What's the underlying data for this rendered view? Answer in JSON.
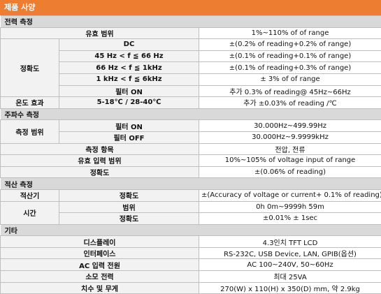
{
  "title": "제품 사양",
  "sections": {
    "power": {
      "header": "전력 측정",
      "range_label": "유효 범위",
      "range_value": "1%~110% of of range",
      "accuracy_label": "정확도",
      "dc_label": "DC",
      "dc_value": "±(0.2% of reading+0.2% of range)",
      "f45_label": "45 Hz < f ≦ 66 Hz",
      "f45_value": "±(0.1% of reading+0.1% of range)",
      "f66_label": "66 Hz < f ≦ 1kHz",
      "f66_value": "±(0.1% of reading+0.3% of range)",
      "f1k_label": "1 kHz < f ≦ 6kHz",
      "f1k_value": "± 3% of of range",
      "filter_label": "필터 ON",
      "filter_value": "추가 0.3% of reading@ 45Hz~66Hz",
      "temp_label": "온도 효과",
      "temp_range": "5-18℃ / 28-40℃",
      "temp_value": "추가 ±0.03% of reading /℃"
    },
    "frequency": {
      "header": "주파수 측정",
      "range_label": "측정 범위",
      "filter_on_label": "필터 ON",
      "filter_on_value": "30.000Hz~499.99Hz",
      "filter_off_label": "필터 OFF",
      "filter_off_value": "30.000Hz~9.9999kHz",
      "items_label": "측정 항목",
      "items_value": "전압, 전류",
      "input_label": "유효 입력 범위",
      "input_value": "10%~105% of voltage input of range",
      "accuracy_label": "정확도",
      "accuracy_value": "±(0.06% of reading)"
    },
    "integration": {
      "header": "적산 측정",
      "integrator_label": "적산기",
      "integrator_acc_label": "정확도",
      "integrator_acc_value": "±(Accuracy of voltage or current+ 0.1% of reading)",
      "time_label": "시간",
      "time_range_label": "범위",
      "time_range_value": "0h 0m~9999h 59m",
      "time_acc_label": "정확도",
      "time_acc_value": "±0.01% ± 1sec"
    },
    "other": {
      "header": "기타",
      "display_label": "디스플레이",
      "display_value": "4.3인치 TFT LCD",
      "interface_label": "인터페이스",
      "interface_value": "RS-232C, USB Device, LAN, GPIB(옵션)",
      "ac_label": "AC 입력 전원",
      "ac_value": "AC 100~240V, 50~60Hz",
      "power_label": "소모 전력",
      "power_value": "최대 25VA",
      "dims_label": "치수 및 무게",
      "dims_value": "270(W) x 110(H) x 350(D) mm, 약 2.9kg"
    }
  }
}
